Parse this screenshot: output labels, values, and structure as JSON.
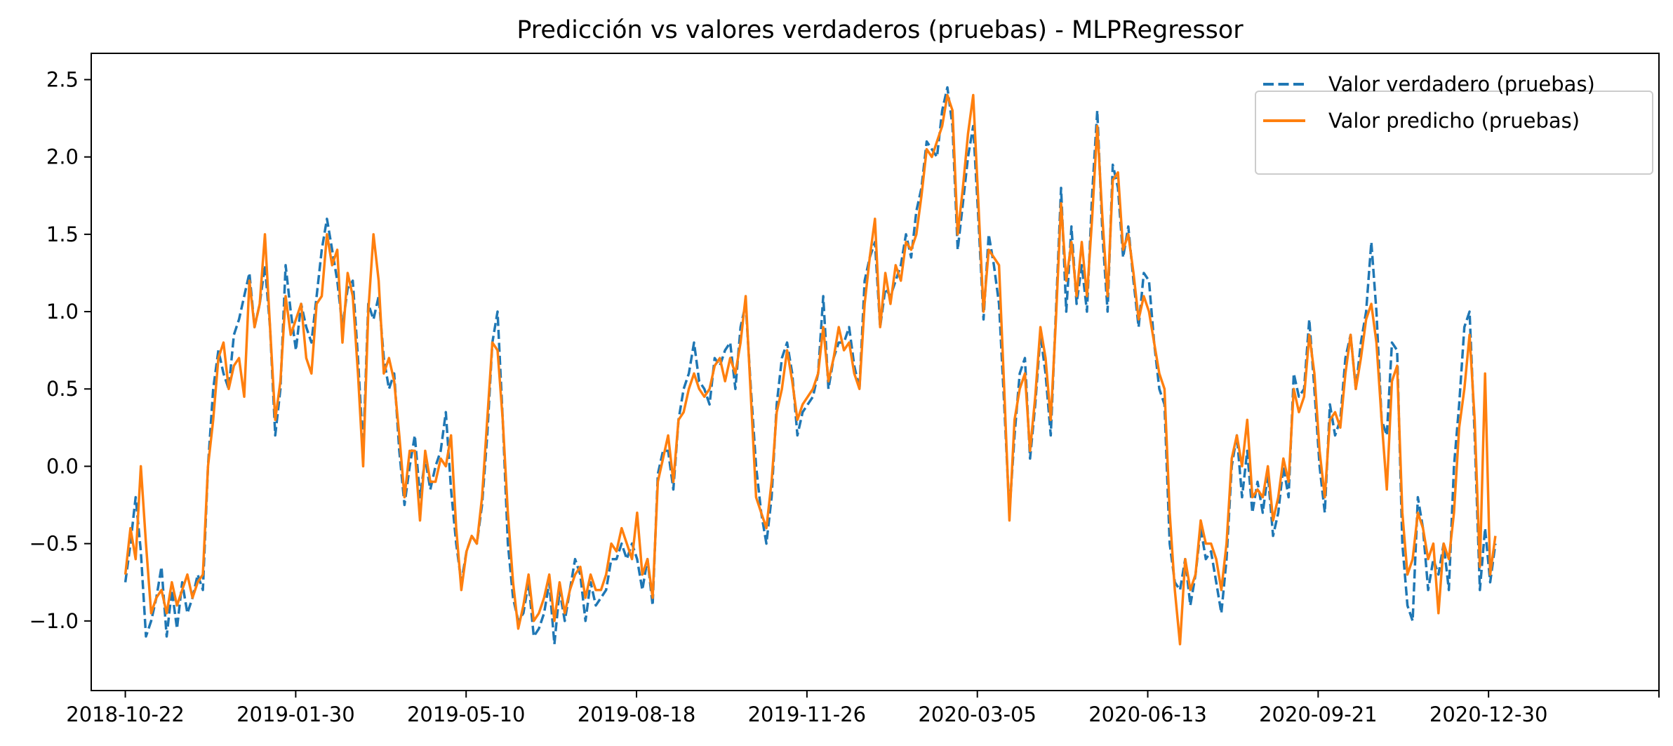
{
  "chart_data": {
    "type": "line",
    "title": "Predicción vs valores verdaderos (pruebas) - MLPRegressor",
    "xlabel": "",
    "ylabel": "",
    "x_tick_labels": [
      "2018-10-22",
      "2019-01-30",
      "2019-05-10",
      "2019-08-18",
      "2019-11-26",
      "2020-03-05",
      "2020-06-13",
      "2020-09-21",
      "2020-12-30"
    ],
    "y_tick_labels": [
      "2.5",
      "2.0",
      "1.5",
      "1.0",
      "0.5",
      "0.0",
      "−0.5",
      "−1.0"
    ],
    "y_ticks": [
      2.5,
      2.0,
      1.5,
      1.0,
      0.5,
      0.0,
      -0.5,
      -1.0
    ],
    "ylim": [
      -1.45,
      2.67
    ],
    "xlim": [
      "2018-10-02",
      "2021-04-09"
    ],
    "x_range": [
      "2018-10-22",
      "2021-01-03"
    ],
    "grid": false,
    "legend_position": "top-right",
    "series": [
      {
        "name": "Valor verdadero (pruebas)",
        "color": "#1f77b4",
        "style": "dashed",
        "values": [
          -0.75,
          -0.5,
          -0.2,
          -0.55,
          -1.1,
          -1.0,
          -0.85,
          -0.65,
          -1.1,
          -0.8,
          -1.05,
          -0.75,
          -0.95,
          -0.85,
          -0.7,
          -0.8,
          0.0,
          0.5,
          0.75,
          0.6,
          0.5,
          0.85,
          0.95,
          1.1,
          1.25,
          0.9,
          1.05,
          1.3,
          0.9,
          0.2,
          0.5,
          1.3,
          1.0,
          0.75,
          1.05,
          0.9,
          0.8,
          1.1,
          1.4,
          1.6,
          1.4,
          1.2,
          0.9,
          1.15,
          1.2,
          0.7,
          0.1,
          1.05,
          0.95,
          1.1,
          0.7,
          0.5,
          0.6,
          0.1,
          -0.25,
          0.0,
          0.2,
          -0.2,
          0.05,
          -0.15,
          0.0,
          0.1,
          0.35,
          -0.15,
          -0.5,
          -0.75,
          -0.55,
          -0.45,
          -0.5,
          -0.25,
          0.2,
          0.8,
          1.0,
          0.3,
          -0.5,
          -0.85,
          -1.0,
          -0.95,
          -0.75,
          -1.1,
          -1.05,
          -0.95,
          -0.75,
          -1.15,
          -0.8,
          -1.0,
          -0.8,
          -0.6,
          -0.7,
          -1.0,
          -0.75,
          -0.9,
          -0.85,
          -0.8,
          -0.6,
          -0.6,
          -0.5,
          -0.6,
          -0.5,
          -0.6,
          -0.8,
          -0.6,
          -0.9,
          -0.05,
          0.1,
          0.1,
          -0.15,
          0.3,
          0.5,
          0.6,
          0.8,
          0.55,
          0.5,
          0.4,
          0.7,
          0.65,
          0.75,
          0.8,
          0.5,
          0.9,
          1.05,
          0.5,
          0.0,
          -0.3,
          -0.5,
          -0.2,
          0.4,
          0.7,
          0.8,
          0.6,
          0.2,
          0.35,
          0.4,
          0.45,
          0.6,
          1.1,
          0.5,
          0.7,
          0.8,
          0.8,
          0.9,
          0.65,
          0.5,
          1.2,
          1.35,
          1.45,
          0.9,
          1.15,
          1.1,
          1.2,
          1.3,
          1.5,
          1.35,
          1.65,
          1.8,
          2.1,
          2.05,
          2.0,
          2.3,
          2.45,
          2.2,
          1.4,
          1.7,
          2.0,
          2.2,
          1.6,
          0.95,
          1.5,
          1.3,
          1.05,
          0.4,
          -0.3,
          0.2,
          0.6,
          0.7,
          0.05,
          0.4,
          0.85,
          0.6,
          0.2,
          1.0,
          1.8,
          1.0,
          1.55,
          1.05,
          1.3,
          1.0,
          1.75,
          2.3,
          1.5,
          1.0,
          1.95,
          1.8,
          1.35,
          1.55,
          1.2,
          0.9,
          1.25,
          1.2,
          0.8,
          0.5,
          0.4,
          -0.5,
          -0.75,
          -0.8,
          -0.6,
          -0.9,
          -0.7,
          -0.4,
          -0.6,
          -0.55,
          -0.75,
          -0.95,
          -0.6,
          0.0,
          0.2,
          -0.2,
          0.1,
          -0.3,
          -0.1,
          -0.3,
          -0.05,
          -0.45,
          -0.3,
          0.0,
          -0.2,
          0.6,
          0.45,
          0.5,
          0.95,
          0.5,
          0.0,
          -0.3,
          0.4,
          0.2,
          0.3,
          0.7,
          0.85,
          0.5,
          0.8,
          1.0,
          1.45,
          1.0,
          0.3,
          0.2,
          0.8,
          0.75,
          -0.5,
          -0.9,
          -1.0,
          -0.2,
          -0.4,
          -0.8,
          -0.6,
          -0.7,
          -0.5,
          -0.8,
          0.0,
          0.4,
          0.9,
          1.0,
          0.2,
          -0.8,
          -0.4,
          -0.75,
          -0.5
        ]
      },
      {
        "name": "Valor predicho (pruebas)",
        "color": "#ff7f0e",
        "style": "solid",
        "values": [
          -0.7,
          -0.4,
          -0.6,
          0.0,
          -0.5,
          -0.95,
          -0.85,
          -0.8,
          -0.95,
          -0.75,
          -0.9,
          -0.8,
          -0.7,
          -0.85,
          -0.75,
          -0.7,
          0.0,
          0.3,
          0.7,
          0.8,
          0.5,
          0.65,
          0.7,
          0.45,
          1.2,
          0.9,
          1.05,
          1.5,
          0.9,
          0.3,
          0.55,
          1.1,
          0.85,
          0.95,
          1.05,
          0.7,
          0.6,
          1.05,
          1.1,
          1.5,
          1.3,
          1.4,
          0.8,
          1.25,
          1.1,
          0.6,
          0.0,
          1.0,
          1.5,
          1.2,
          0.6,
          0.7,
          0.55,
          0.2,
          -0.2,
          0.1,
          0.1,
          -0.35,
          0.1,
          -0.1,
          -0.1,
          0.05,
          0.0,
          0.2,
          -0.4,
          -0.8,
          -0.55,
          -0.45,
          -0.5,
          -0.2,
          0.3,
          0.8,
          0.75,
          0.3,
          -0.3,
          -0.75,
          -1.05,
          -0.9,
          -0.7,
          -1.0,
          -0.95,
          -0.85,
          -0.7,
          -1.0,
          -0.75,
          -0.95,
          -0.8,
          -0.7,
          -0.65,
          -0.85,
          -0.7,
          -0.8,
          -0.8,
          -0.7,
          -0.5,
          -0.55,
          -0.4,
          -0.5,
          -0.6,
          -0.3,
          -0.7,
          -0.6,
          -0.85,
          -0.1,
          0.05,
          0.2,
          -0.1,
          0.3,
          0.35,
          0.5,
          0.6,
          0.5,
          0.45,
          0.5,
          0.65,
          0.7,
          0.55,
          0.7,
          0.6,
          0.8,
          1.1,
          0.45,
          -0.2,
          -0.3,
          -0.4,
          -0.1,
          0.35,
          0.5,
          0.75,
          0.55,
          0.3,
          0.4,
          0.45,
          0.5,
          0.6,
          0.9,
          0.55,
          0.7,
          0.9,
          0.75,
          0.8,
          0.6,
          0.5,
          1.05,
          1.35,
          1.6,
          0.9,
          1.25,
          1.05,
          1.3,
          1.2,
          1.45,
          1.4,
          1.5,
          1.75,
          2.05,
          2.0,
          2.1,
          2.2,
          2.4,
          2.3,
          1.5,
          1.8,
          2.15,
          2.4,
          1.7,
          1.0,
          1.4,
          1.35,
          1.3,
          0.5,
          -0.35,
          0.3,
          0.5,
          0.6,
          0.1,
          0.45,
          0.9,
          0.7,
          0.3,
          0.95,
          1.7,
          1.2,
          1.45,
          1.1,
          1.45,
          1.1,
          1.6,
          2.2,
          1.6,
          1.1,
          1.85,
          1.9,
          1.4,
          1.5,
          1.25,
          0.95,
          1.1,
          1.0,
          0.8,
          0.6,
          0.5,
          -0.3,
          -0.8,
          -1.15,
          -0.6,
          -0.8,
          -0.7,
          -0.35,
          -0.5,
          -0.5,
          -0.6,
          -0.8,
          -0.5,
          0.05,
          0.2,
          0.0,
          0.3,
          -0.2,
          -0.15,
          -0.2,
          0.0,
          -0.35,
          -0.2,
          0.05,
          -0.1,
          0.5,
          0.35,
          0.45,
          0.85,
          0.6,
          0.1,
          -0.2,
          0.3,
          0.35,
          0.25,
          0.6,
          0.85,
          0.5,
          0.7,
          0.95,
          1.05,
          0.8,
          0.3,
          -0.15,
          0.55,
          0.65,
          -0.3,
          -0.7,
          -0.6,
          -0.3,
          -0.4,
          -0.6,
          -0.5,
          -0.95,
          -0.5,
          -0.6,
          -0.3,
          0.25,
          0.5,
          0.85,
          0.3,
          -0.65,
          0.6,
          -0.7,
          -0.45
        ]
      }
    ]
  }
}
